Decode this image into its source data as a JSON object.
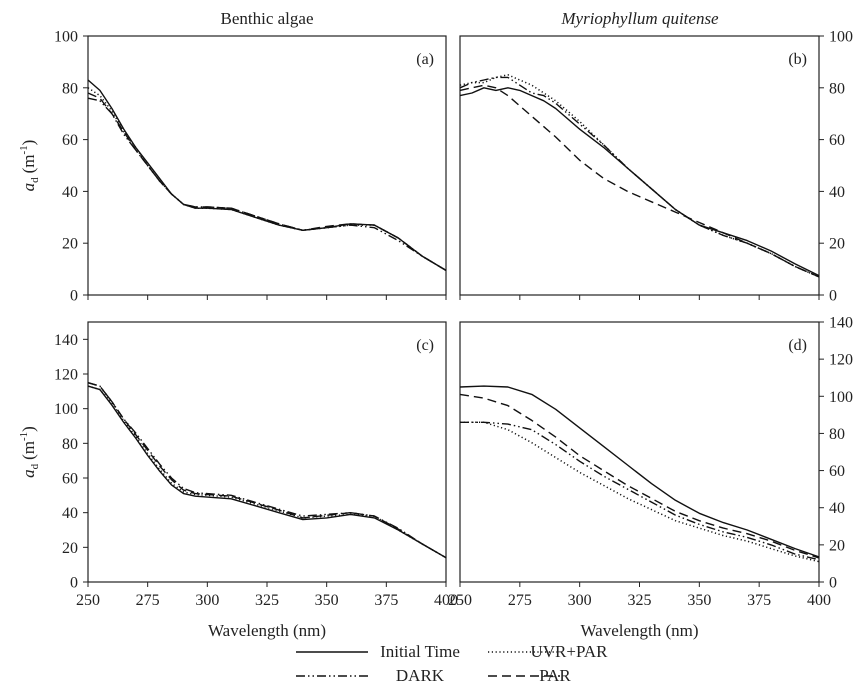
{
  "chart_data": {
    "type": "line",
    "x_label": "Wavelength (nm)",
    "y_label": "a_d (m^-1)",
    "y_label_parts": {
      "main": "a",
      "sub": "d",
      "unit_open": "(m",
      "sup": "-1",
      "unit_close": ")"
    },
    "column_titles": [
      "Benthic algae",
      "Myriophyllum quitense"
    ],
    "legend": [
      {
        "name": "Initial Time",
        "style": "solid"
      },
      {
        "name": "UVR+PAR",
        "style": "dotted"
      },
      {
        "name": "DARK",
        "style": "dashdot"
      },
      {
        "name": "PAR",
        "style": "dashed"
      }
    ],
    "x_ticks": [
      250,
      275,
      300,
      325,
      350,
      375,
      400
    ],
    "panels": [
      {
        "label": "(a)",
        "xlim": [
          250,
          400
        ],
        "ylim": [
          0,
          100
        ],
        "y_ticks": [
          0,
          20,
          40,
          60,
          80,
          100
        ],
        "y_axis_side": "left",
        "show_x_tick_labels": false,
        "series": [
          {
            "name": "Initial Time",
            "x": [
              250,
              255,
              260,
              265,
              270,
              275,
              280,
              285,
              290,
              295,
              300,
              310,
              320,
              330,
              340,
              350,
              360,
              370,
              380,
              390,
              400
            ],
            "y": [
              83,
              79,
              72,
              64,
              57,
              51,
              45,
              39,
              35,
              33.5,
              33.5,
              33,
              30,
              27,
              25,
              26,
              27.5,
              27,
              22,
              15,
              9.5
            ]
          },
          {
            "name": "DARK",
            "x": [
              250,
              255,
              260,
              265,
              270,
              275,
              280,
              285,
              290,
              295,
              300,
              310,
              320,
              330,
              340,
              350,
              360,
              370,
              380,
              390,
              400
            ],
            "y": [
              76,
              75,
              70,
              62,
              56,
              50,
              44,
              39,
              35,
              34,
              34,
              33.5,
              30.5,
              27.5,
              25,
              26,
              27,
              26,
              21,
              15,
              9.5
            ]
          },
          {
            "name": "UVR+PAR",
            "x": [
              250,
              255,
              260,
              265,
              270,
              275,
              280,
              285,
              290,
              295,
              300,
              310,
              320,
              330,
              340,
              350,
              360,
              370,
              380,
              390,
              400
            ],
            "y": [
              80,
              77,
              71,
              63,
              57,
              50,
              44,
              39,
              35,
              33.5,
              33.5,
              33,
              30,
              27,
              25,
              26,
              27,
              27,
              22,
              15,
              9.5
            ]
          },
          {
            "name": "PAR",
            "x": [
              250,
              255,
              260,
              265,
              270,
              275,
              280,
              285,
              290,
              295,
              300,
              310,
              320,
              330,
              340,
              350,
              360,
              370,
              380,
              390,
              400
            ],
            "y": [
              78,
              76,
              70,
              63,
              56,
              50,
              44,
              39,
              35,
              34,
              34,
              33.5,
              30.5,
              27.5,
              25,
              26.5,
              27.5,
              27,
              22,
              15,
              9.5
            ]
          }
        ]
      },
      {
        "label": "(b)",
        "xlim": [
          250,
          400
        ],
        "ylim": [
          0,
          100
        ],
        "y_ticks": [
          0,
          20,
          40,
          60,
          80,
          100
        ],
        "y_axis_side": "right",
        "show_x_tick_labels": false,
        "series": [
          {
            "name": "Initial Time",
            "x": [
              250,
              255,
              260,
              265,
              270,
              275,
              280,
              285,
              290,
              300,
              310,
              320,
              330,
              340,
              350,
              360,
              370,
              380,
              390,
              400
            ],
            "y": [
              77,
              78,
              80,
              79,
              80,
              79,
              77,
              75,
              72,
              64,
              57,
              49,
              41,
              33,
              27,
              24,
              21,
              17,
              12,
              7.5
            ]
          },
          {
            "name": "DARK",
            "x": [
              250,
              255,
              260,
              265,
              270,
              275,
              280,
              285,
              290,
              300,
              310,
              320,
              330,
              340,
              350,
              360,
              370,
              380,
              390,
              400
            ],
            "y": [
              80,
              82,
              83,
              84,
              84,
              81,
              78,
              77,
              74,
              66,
              58,
              49,
              41,
              33,
              27,
              23,
              20,
              16,
              11,
              7
            ]
          },
          {
            "name": "UVR+PAR",
            "x": [
              250,
              255,
              260,
              265,
              270,
              275,
              280,
              285,
              290,
              300,
              310,
              320,
              330,
              340,
              350,
              360,
              370,
              380,
              390,
              400
            ],
            "y": [
              81,
              82,
              82,
              84,
              85,
              83,
              81,
              78,
              75,
              67,
              58,
              49,
              41,
              33,
              27,
              23,
              20,
              16,
              11,
              7
            ]
          },
          {
            "name": "PAR",
            "x": [
              250,
              255,
              260,
              265,
              270,
              275,
              280,
              285,
              290,
              300,
              310,
              320,
              330,
              340,
              350,
              360,
              370,
              380,
              390,
              400
            ],
            "y": [
              79,
              80,
              81,
              80,
              77,
              73,
              69,
              65,
              61,
              52,
              45,
              40,
              36,
              32,
              28,
              24,
              20,
              16,
              11,
              7
            ]
          }
        ]
      },
      {
        "label": "(c)",
        "xlim": [
          250,
          400
        ],
        "ylim": [
          0,
          150
        ],
        "y_ticks": [
          0,
          20,
          40,
          60,
          80,
          100,
          120,
          140
        ],
        "y_axis_side": "left",
        "show_x_tick_labels": true,
        "series": [
          {
            "name": "Initial Time",
            "x": [
              250,
              255,
              260,
              265,
              270,
              275,
              280,
              285,
              290,
              295,
              300,
              310,
              320,
              330,
              340,
              350,
              360,
              370,
              380,
              390,
              400
            ],
            "y": [
              113,
              111,
              102,
              92,
              83,
              73,
              64,
              56,
              51,
              49.5,
              49,
              48,
              44,
              40,
              36,
              37,
              39,
              37,
              30,
              22,
              14
            ]
          },
          {
            "name": "DARK",
            "x": [
              250,
              255,
              260,
              265,
              270,
              275,
              280,
              285,
              290,
              295,
              300,
              310,
              320,
              330,
              340,
              350,
              360,
              370,
              380,
              390,
              400
            ],
            "y": [
              115,
              113,
              104,
              94,
              86,
              77,
              68,
              60,
              54,
              51.5,
              51,
              50,
              46,
              42,
              38,
              39,
              40,
              38,
              31,
              22,
              14
            ]
          },
          {
            "name": "UVR+PAR",
            "x": [
              250,
              255,
              260,
              265,
              270,
              275,
              280,
              285,
              290,
              295,
              300,
              310,
              320,
              330,
              340,
              350,
              360,
              370,
              380,
              390,
              400
            ],
            "y": [
              113,
              111,
              103,
              93,
              84,
              74,
              65,
              57,
              52,
              50.5,
              50,
              49,
              45,
              41,
              37,
              38,
              39,
              38,
              30,
              22,
              14
            ]
          },
          {
            "name": "PAR",
            "x": [
              250,
              255,
              260,
              265,
              270,
              275,
              280,
              285,
              290,
              295,
              300,
              310,
              320,
              330,
              340,
              350,
              360,
              370,
              380,
              390,
              400
            ],
            "y": [
              115,
              113,
              104,
              94,
              85,
              76,
              67,
              59,
              53,
              51,
              50.5,
              49.5,
              45.5,
              41.5,
              37,
              38.5,
              40,
              38,
              30.5,
              22,
              14
            ]
          }
        ]
      },
      {
        "label": "(d)",
        "xlim": [
          250,
          400
        ],
        "ylim": [
          0,
          140
        ],
        "y_ticks": [
          0,
          20,
          40,
          60,
          80,
          100,
          120,
          140
        ],
        "y_axis_side": "right",
        "show_x_tick_labels": true,
        "series": [
          {
            "name": "Initial Time",
            "x": [
              250,
              260,
              270,
              280,
              290,
              300,
              310,
              320,
              330,
              340,
              350,
              360,
              370,
              380,
              390,
              400
            ],
            "y": [
              105,
              105.5,
              105,
              101,
              93,
              83,
              73,
              63,
              53,
              44,
              37,
              32,
              28,
              23,
              18,
              13.5
            ]
          },
          {
            "name": "UVR+PAR",
            "x": [
              250,
              260,
              270,
              280,
              290,
              300,
              310,
              320,
              330,
              340,
              350,
              360,
              370,
              380,
              390,
              400
            ],
            "y": [
              86,
              86,
              82,
              75,
              67,
              59,
              52,
              45,
              39,
              33,
              29,
              25,
              22,
              18,
              14,
              11
            ]
          },
          {
            "name": "DARK",
            "x": [
              250,
              260,
              270,
              280,
              290,
              300,
              310,
              320,
              330,
              340,
              350,
              360,
              370,
              380,
              390,
              400
            ],
            "y": [
              86,
              86,
              85,
              82,
              74,
              65,
              57,
              50,
              43,
              36,
              31,
              27,
              24,
              20,
              15,
              12
            ]
          },
          {
            "name": "PAR",
            "x": [
              250,
              260,
              270,
              280,
              290,
              300,
              310,
              320,
              330,
              340,
              350,
              360,
              370,
              380,
              390,
              400
            ],
            "y": [
              101,
              99,
              95,
              87,
              78,
              68,
              60,
              52,
              45,
              38,
              33,
              29,
              26,
              22,
              17,
              13
            ]
          }
        ]
      }
    ]
  }
}
